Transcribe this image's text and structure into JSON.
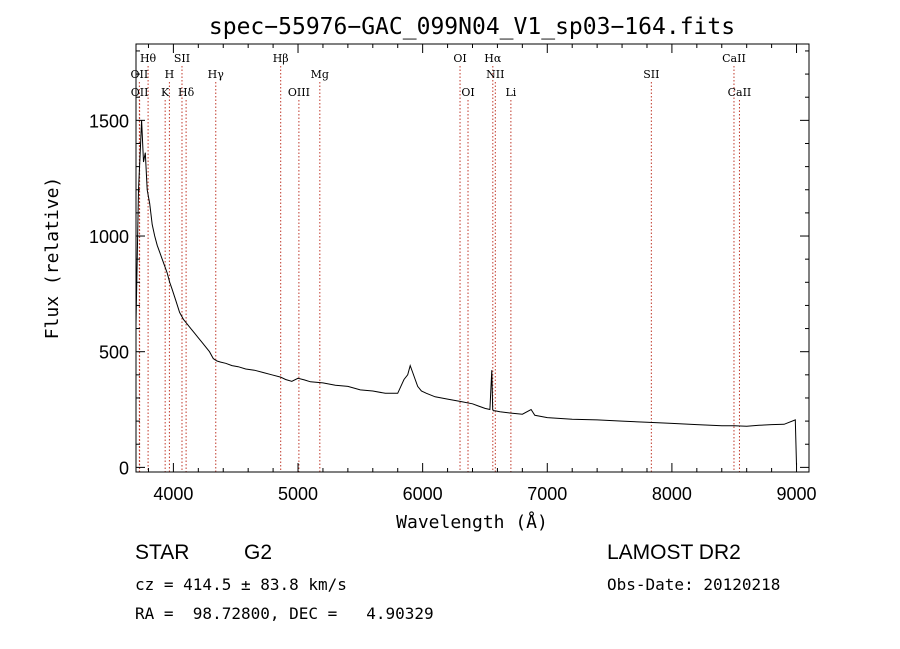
{
  "chart_data": {
    "type": "line",
    "title": "spec−55976−GAC_099N04_V1_sp03−164.fits",
    "xlabel": "Wavelength (Å)",
    "ylabel": "Flux (relative)",
    "xlim": [
      3700,
      9100
    ],
    "ylim": [
      -20,
      1830
    ],
    "xticks": [
      "4000",
      "5000",
      "6000",
      "7000",
      "8000",
      "9000"
    ],
    "yticks": [
      "0",
      "500",
      "1000",
      "1500"
    ],
    "grid": false,
    "series": [
      {
        "x": [
          3700,
          3720,
          3735,
          3745,
          3760,
          3775,
          3790,
          3810,
          3830,
          3850,
          3870,
          3890,
          3910,
          3930,
          3950,
          3970,
          3990,
          4020,
          4050,
          4080,
          4110,
          4140,
          4170,
          4200,
          4230,
          4260,
          4290,
          4320,
          4350,
          4380,
          4420,
          4470,
          4520,
          4580,
          4650,
          4720,
          4790,
          4860,
          4900,
          4950,
          5000,
          5050,
          5100,
          5200,
          5300,
          5400,
          5500,
          5600,
          5700,
          5800,
          5850,
          5880,
          5900,
          5920,
          5940,
          5960,
          5990,
          6030,
          6100,
          6200,
          6300,
          6400,
          6450,
          6500,
          6540,
          6555,
          6562,
          6568,
          6580,
          6620,
          6700,
          6800,
          6870,
          6900,
          7000,
          7200,
          7400,
          7600,
          7800,
          8000,
          8200,
          8400,
          8500,
          8600,
          8700,
          8800,
          8900,
          8990,
          9000
        ],
        "y": [
          620,
          1200,
          1380,
          1500,
          1320,
          1360,
          1200,
          1140,
          1050,
          1000,
          960,
          930,
          900,
          870,
          840,
          800,
          770,
          720,
          670,
          640,
          620,
          600,
          580,
          560,
          540,
          520,
          500,
          470,
          460,
          455,
          450,
          440,
          435,
          425,
          420,
          410,
          400,
          390,
          380,
          372,
          385,
          378,
          370,
          365,
          355,
          350,
          335,
          330,
          320,
          320,
          380,
          400,
          440,
          410,
          380,
          350,
          330,
          320,
          305,
          295,
          285,
          275,
          265,
          255,
          250,
          420,
          250,
          245,
          245,
          240,
          235,
          230,
          250,
          225,
          215,
          208,
          205,
          200,
          195,
          190,
          185,
          180,
          180,
          178,
          182,
          185,
          186,
          205,
          10
        ]
      }
    ],
    "lines": [
      {
        "label": "Hθ",
        "x": 3797,
        "row": 1
      },
      {
        "label": "OII",
        "x": 3727,
        "row": 2
      },
      {
        "label": "OII",
        "x": 3729,
        "row": 3
      },
      {
        "label": "H",
        "x": 3968,
        "row": 2
      },
      {
        "label": "K",
        "x": 3934,
        "row": 3
      },
      {
        "label": "SII",
        "x": 4069,
        "row": 1
      },
      {
        "label": "Hδ",
        "x": 4102,
        "row": 3
      },
      {
        "label": "Hγ",
        "x": 4340,
        "row": 2
      },
      {
        "label": "Hβ",
        "x": 4861,
        "row": 1
      },
      {
        "label": "OIII",
        "x": 5007,
        "row": 3
      },
      {
        "label": "Mg",
        "x": 5175,
        "row": 2
      },
      {
        "label": "OI",
        "x": 6300,
        "row": 1
      },
      {
        "label": "OI",
        "x": 6364,
        "row": 3
      },
      {
        "label": "Hα",
        "x": 6563,
        "row": 1
      },
      {
        "label": "NII",
        "x": 6583,
        "row": 2
      },
      {
        "label": "Li",
        "x": 6708,
        "row": 3
      },
      {
        "label": "SII",
        "x": 7835,
        "row": 2
      },
      {
        "label": "CaII",
        "x": 8498,
        "row": 1
      },
      {
        "label": "CaII",
        "x": 8542,
        "row": 3
      }
    ]
  },
  "info": {
    "class": "STAR",
    "subclass": "G2",
    "survey": "LAMOST DR2",
    "cz": "cz = 414.5 ± 83.8 km/s",
    "obs_date": "Obs-Date: 20120218",
    "coords": "RA =  98.72800, DEC =   4.90329"
  }
}
